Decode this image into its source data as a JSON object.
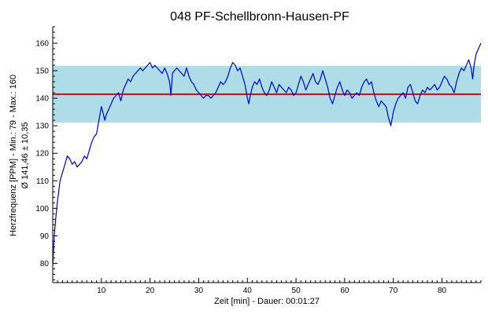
{
  "chart_data": {
    "type": "line",
    "title": "048 PF-Schellbronn-Hausen-PF",
    "xlabel": "Zeit [min] - Dauer: 00:01:27",
    "ylabel_line1": "Herzfrequenz [PPM] - Min.: 79 - Max.: 160",
    "ylabel_line2": "Ø 141,46 ± 10,35",
    "xlim": [
      0,
      88
    ],
    "ylim": [
      73,
      166
    ],
    "x_ticks": [
      10,
      20,
      30,
      40,
      50,
      60,
      70,
      80
    ],
    "y_ticks": [
      80,
      90,
      100,
      110,
      120,
      130,
      140,
      150,
      160
    ],
    "grid": false,
    "mean": 141.46,
    "std_band": [
      131.11,
      151.81
    ],
    "colors": {
      "line": "#0000cc",
      "mean_line": "#ff0000",
      "band": "#aedde8",
      "axis": "#000000"
    },
    "series": [
      {
        "values": [
          [
            0,
            79
          ],
          [
            0.3,
            90
          ],
          [
            0.6,
            96
          ],
          [
            1.0,
            103
          ],
          [
            1.5,
            110
          ],
          [
            2.0,
            113
          ],
          [
            2.5,
            116
          ],
          [
            3.0,
            119
          ],
          [
            3.5,
            118
          ],
          [
            4.0,
            116
          ],
          [
            4.5,
            117
          ],
          [
            5.0,
            115
          ],
          [
            5.5,
            116
          ],
          [
            6.0,
            117
          ],
          [
            6.5,
            119
          ],
          [
            7.0,
            118
          ],
          [
            7.5,
            121
          ],
          [
            8.0,
            124
          ],
          [
            8.5,
            126
          ],
          [
            9.0,
            127
          ],
          [
            9.5,
            132
          ],
          [
            10.0,
            137
          ],
          [
            10.3,
            135
          ],
          [
            10.7,
            132
          ],
          [
            11.0,
            134
          ],
          [
            11.5,
            136
          ],
          [
            12.0,
            138
          ],
          [
            12.5,
            140
          ],
          [
            13.0,
            141
          ],
          [
            13.5,
            142
          ],
          [
            14.0,
            139
          ],
          [
            14.5,
            143
          ],
          [
            15.0,
            145
          ],
          [
            15.5,
            147
          ],
          [
            16.0,
            146
          ],
          [
            16.5,
            148
          ],
          [
            17.0,
            149
          ],
          [
            17.5,
            150
          ],
          [
            18.0,
            151
          ],
          [
            18.5,
            150
          ],
          [
            19.0,
            151
          ],
          [
            19.5,
            152
          ],
          [
            20.0,
            153
          ],
          [
            20.5,
            151
          ],
          [
            21.0,
            152
          ],
          [
            21.5,
            151
          ],
          [
            22.0,
            150
          ],
          [
            22.5,
            149
          ],
          [
            23.0,
            151
          ],
          [
            23.5,
            149
          ],
          [
            24.0,
            146
          ],
          [
            24.3,
            141
          ],
          [
            24.6,
            149
          ],
          [
            25.0,
            150
          ],
          [
            25.5,
            151
          ],
          [
            26.0,
            150
          ],
          [
            26.5,
            149
          ],
          [
            27.0,
            148
          ],
          [
            27.5,
            151
          ],
          [
            28.0,
            148
          ],
          [
            28.5,
            146
          ],
          [
            29.0,
            145
          ],
          [
            29.5,
            143
          ],
          [
            30.0,
            142
          ],
          [
            30.5,
            141
          ],
          [
            31.0,
            140
          ],
          [
            31.5,
            141
          ],
          [
            32.0,
            141
          ],
          [
            32.5,
            140
          ],
          [
            33.0,
            141
          ],
          [
            33.5,
            142
          ],
          [
            34.0,
            144
          ],
          [
            34.5,
            146
          ],
          [
            35.0,
            145
          ],
          [
            35.5,
            146
          ],
          [
            36.0,
            148
          ],
          [
            36.5,
            151
          ],
          [
            37.0,
            153
          ],
          [
            37.5,
            152
          ],
          [
            38.0,
            150
          ],
          [
            38.5,
            151
          ],
          [
            39.0,
            148
          ],
          [
            39.5,
            145
          ],
          [
            40.0,
            140
          ],
          [
            40.3,
            138
          ],
          [
            40.6,
            141
          ],
          [
            41.0,
            144
          ],
          [
            41.5,
            146
          ],
          [
            42.0,
            145
          ],
          [
            42.5,
            147
          ],
          [
            43.0,
            144
          ],
          [
            43.5,
            142
          ],
          [
            44.0,
            141
          ],
          [
            44.5,
            143
          ],
          [
            45.0,
            146
          ],
          [
            45.5,
            144
          ],
          [
            46.0,
            142
          ],
          [
            46.5,
            145
          ],
          [
            47.0,
            144
          ],
          [
            47.5,
            143
          ],
          [
            48.0,
            142
          ],
          [
            48.5,
            144
          ],
          [
            49.0,
            143
          ],
          [
            49.5,
            141
          ],
          [
            50.0,
            142
          ],
          [
            50.5,
            145
          ],
          [
            51.0,
            148
          ],
          [
            51.5,
            146
          ],
          [
            52.0,
            143
          ],
          [
            52.5,
            145
          ],
          [
            53.0,
            147
          ],
          [
            53.5,
            149
          ],
          [
            54.0,
            146
          ],
          [
            54.5,
            145
          ],
          [
            55.0,
            147
          ],
          [
            55.5,
            150
          ],
          [
            56.0,
            147
          ],
          [
            56.5,
            144
          ],
          [
            57.0,
            140
          ],
          [
            57.5,
            138
          ],
          [
            58.0,
            141
          ],
          [
            58.5,
            144
          ],
          [
            59.0,
            146
          ],
          [
            59.5,
            143
          ],
          [
            60.0,
            141
          ],
          [
            60.5,
            143
          ],
          [
            61.0,
            142
          ],
          [
            61.5,
            140
          ],
          [
            62.0,
            141
          ],
          [
            62.5,
            142
          ],
          [
            63.0,
            141
          ],
          [
            63.5,
            144
          ],
          [
            64.0,
            146
          ],
          [
            64.5,
            147
          ],
          [
            65.0,
            145
          ],
          [
            65.5,
            146
          ],
          [
            66.0,
            142
          ],
          [
            66.5,
            139
          ],
          [
            67.0,
            137
          ],
          [
            67.5,
            139
          ],
          [
            68.0,
            138
          ],
          [
            68.5,
            137
          ],
          [
            69.0,
            133
          ],
          [
            69.5,
            130
          ],
          [
            70.0,
            135
          ],
          [
            70.5,
            138
          ],
          [
            71.0,
            140
          ],
          [
            71.5,
            141
          ],
          [
            72.0,
            142
          ],
          [
            72.5,
            140
          ],
          [
            73.0,
            144
          ],
          [
            73.5,
            145
          ],
          [
            74.0,
            142
          ],
          [
            74.5,
            139
          ],
          [
            75.0,
            138
          ],
          [
            75.5,
            141
          ],
          [
            76.0,
            143
          ],
          [
            76.5,
            142
          ],
          [
            77.0,
            144
          ],
          [
            77.5,
            143
          ],
          [
            78.0,
            144
          ],
          [
            78.5,
            145
          ],
          [
            79.0,
            143
          ],
          [
            79.5,
            144
          ],
          [
            80.0,
            146
          ],
          [
            80.5,
            148
          ],
          [
            81.0,
            147
          ],
          [
            81.5,
            145
          ],
          [
            82.0,
            144
          ],
          [
            82.5,
            142
          ],
          [
            83.0,
            146
          ],
          [
            83.5,
            149
          ],
          [
            84.0,
            151
          ],
          [
            84.5,
            150
          ],
          [
            85.0,
            152
          ],
          [
            85.5,
            154
          ],
          [
            86.0,
            151
          ],
          [
            86.3,
            147
          ],
          [
            86.6,
            152
          ],
          [
            87.0,
            156
          ],
          [
            87.5,
            158
          ],
          [
            88.0,
            160
          ]
        ]
      }
    ]
  }
}
